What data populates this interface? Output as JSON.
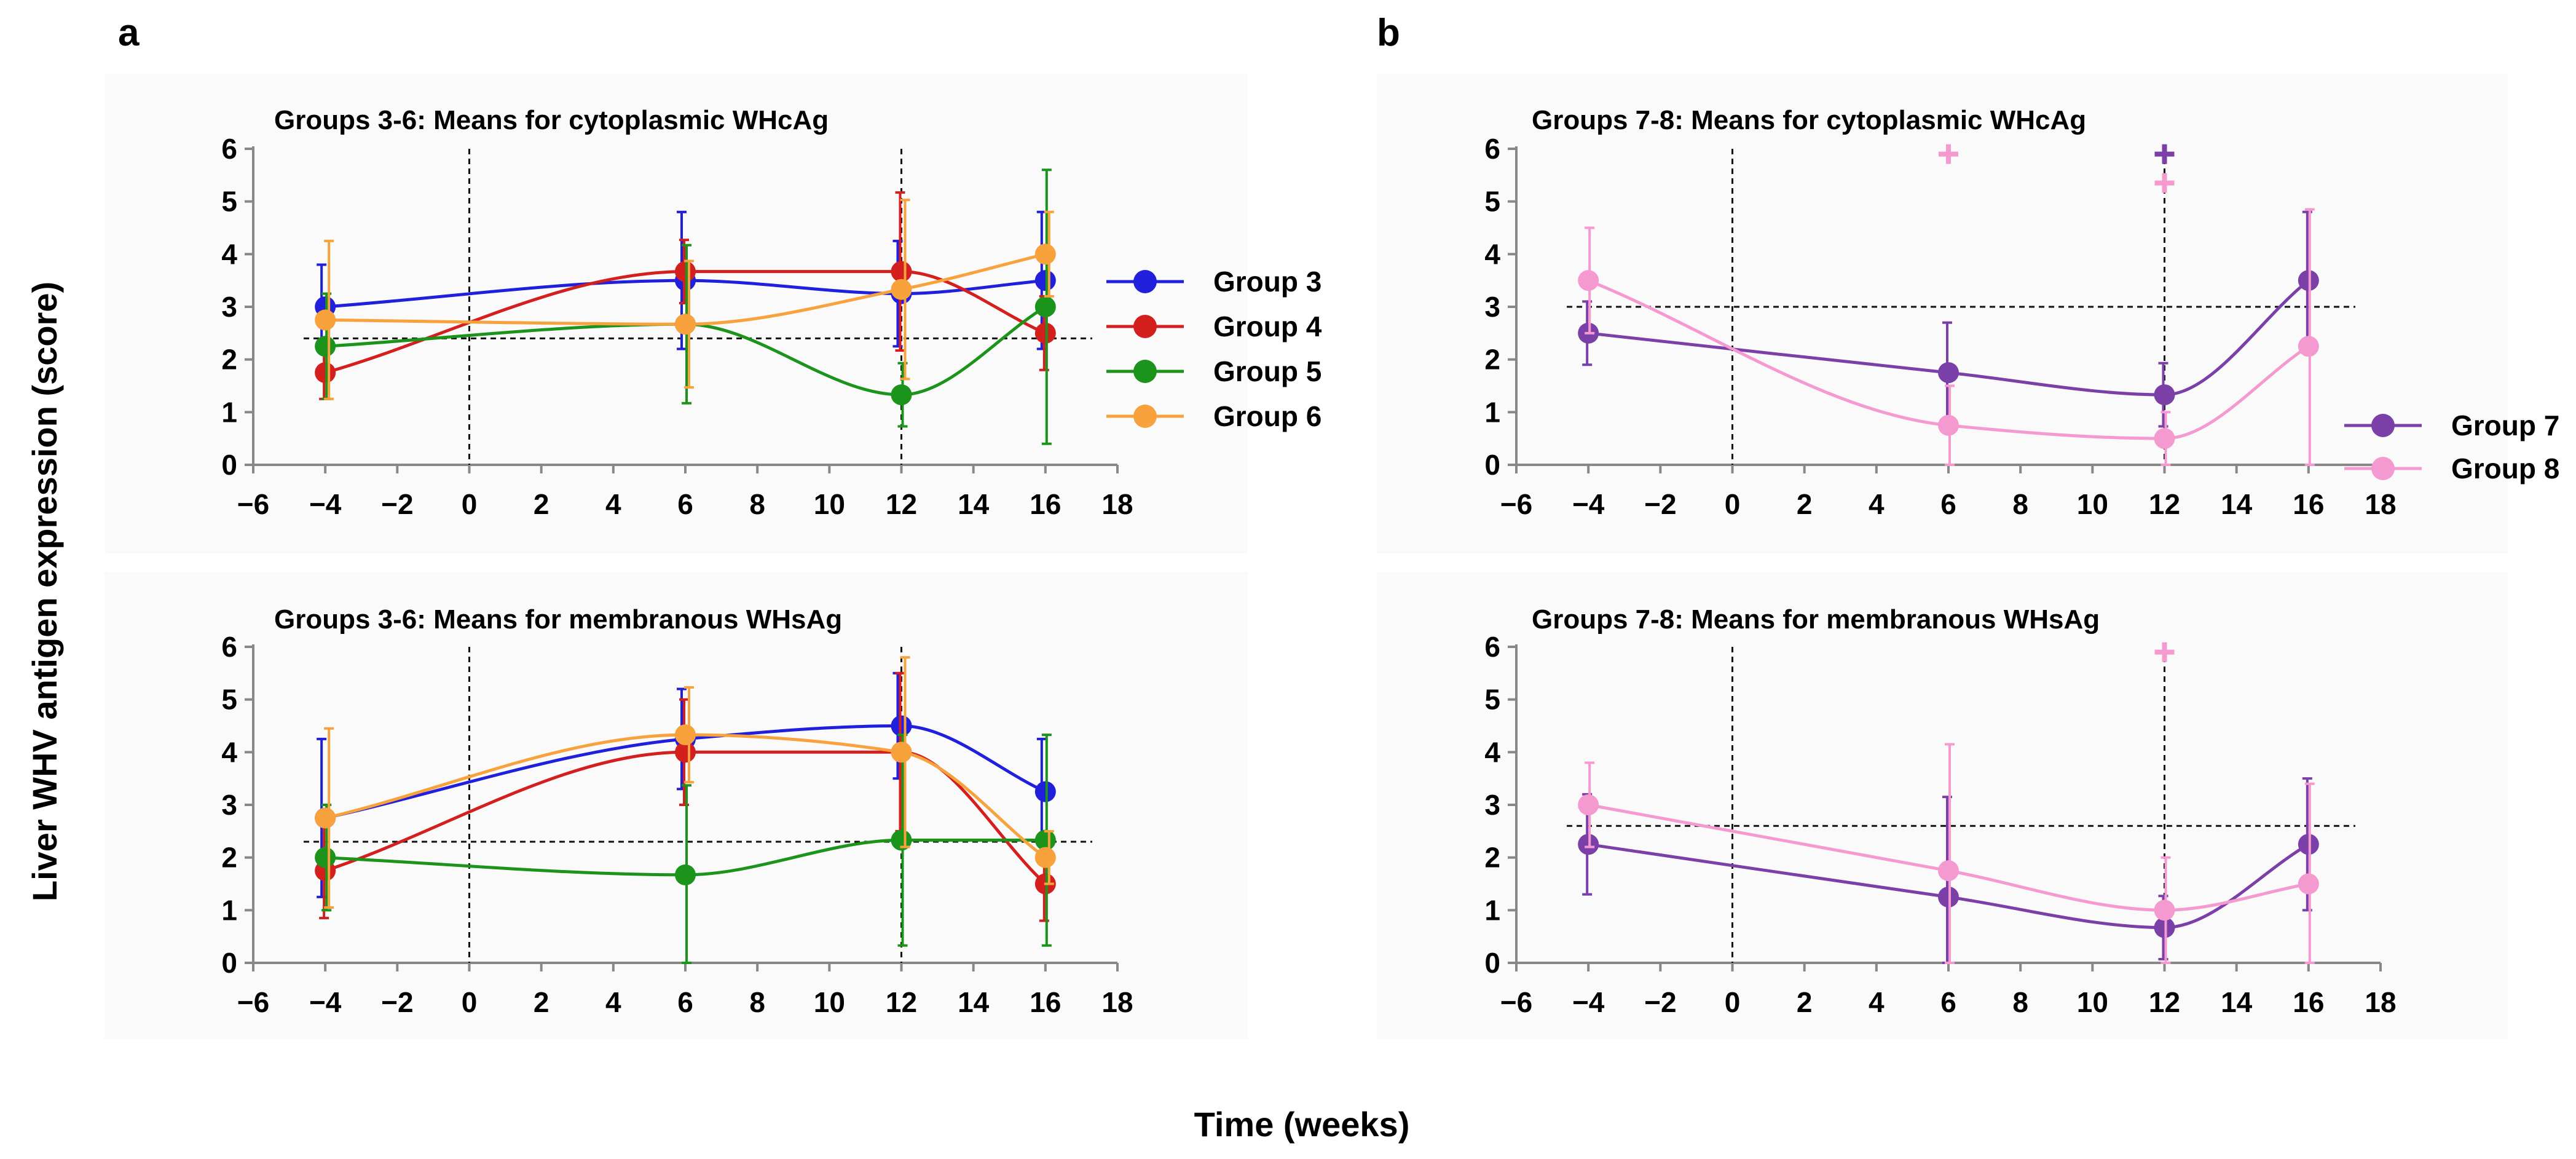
{
  "figure": {
    "ylabel": "Liver WHV antigen expression (score)",
    "xlabel": "Time (weeks)",
    "panels": [
      "a",
      "b"
    ]
  },
  "chart_data": [
    {
      "type": "line",
      "panel": "a",
      "title": "Groups 3-6: Means for cytoplasmic WHcAg",
      "xlim": [
        -6,
        18
      ],
      "ylim": [
        0,
        6
      ],
      "xticks": [
        "−6",
        "−4",
        "−2",
        "0",
        "2",
        "4",
        "6",
        "8",
        "10",
        "12",
        "14",
        "16",
        "18"
      ],
      "yticks": [
        "0",
        "1",
        "2",
        "3",
        "4",
        "5",
        "6"
      ],
      "vlines": [
        0,
        12
      ],
      "hline": 2.4,
      "x": [
        -4,
        6,
        12,
        16
      ],
      "series": [
        {
          "name": "Group 3",
          "color": "#1f1fdc",
          "values": [
            3.0,
            3.5,
            3.25,
            3.5
          ],
          "err": [
            0.8,
            1.3,
            1.0,
            1.3
          ]
        },
        {
          "name": "Group 4",
          "color": "#d41f1f",
          "values": [
            1.75,
            3.67,
            3.67,
            2.5
          ],
          "err": [
            0.5,
            0.6,
            1.5,
            0.7
          ]
        },
        {
          "name": "Group 5",
          "color": "#1c941c",
          "values": [
            2.25,
            2.67,
            1.33,
            3.0
          ],
          "err": [
            1.0,
            1.5,
            0.6,
            2.6
          ]
        },
        {
          "name": "Group 6",
          "color": "#f7a23c",
          "values": [
            2.75,
            2.67,
            3.33,
            4.0
          ],
          "err": [
            1.5,
            1.2,
            1.7,
            0.8
          ]
        }
      ],
      "markers": []
    },
    {
      "type": "line",
      "panel": "a",
      "title": "Groups 3-6: Means for membranous WHsAg",
      "xlim": [
        -6,
        18
      ],
      "ylim": [
        0,
        6
      ],
      "xticks": [
        "−6",
        "−4",
        "−2",
        "0",
        "2",
        "4",
        "6",
        "8",
        "10",
        "12",
        "14",
        "16",
        "18"
      ],
      "yticks": [
        "0",
        "1",
        "2",
        "3",
        "4",
        "5",
        "6"
      ],
      "vlines": [
        0,
        12
      ],
      "hline": 2.3,
      "x": [
        -4,
        6,
        12,
        16
      ],
      "series": [
        {
          "name": "Group 3",
          "color": "#1f1fdc",
          "values": [
            2.75,
            4.25,
            4.5,
            3.25
          ],
          "err": [
            1.5,
            0.95,
            1.0,
            1.0
          ]
        },
        {
          "name": "Group 4",
          "color": "#d41f1f",
          "values": [
            1.75,
            4.0,
            4.0,
            1.5
          ],
          "err": [
            0.9,
            1.0,
            1.5,
            0.7
          ]
        },
        {
          "name": "Group 5",
          "color": "#1c941c",
          "values": [
            2.0,
            1.67,
            2.33,
            2.33
          ],
          "err": [
            1.0,
            1.7,
            2.0,
            2.0
          ]
        },
        {
          "name": "Group 6",
          "color": "#f7a23c",
          "values": [
            2.75,
            4.33,
            4.0,
            2.0
          ],
          "err": [
            1.7,
            0.9,
            1.8,
            0.5
          ]
        }
      ],
      "markers": []
    },
    {
      "type": "line",
      "panel": "b",
      "title": "Groups 7-8: Means for cytoplasmic WHcAg",
      "xlim": [
        -6,
        18
      ],
      "ylim": [
        0,
        6
      ],
      "xticks": [
        "−6",
        "−4",
        "−2",
        "0",
        "2",
        "4",
        "6",
        "8",
        "10",
        "12",
        "14",
        "16",
        "18"
      ],
      "yticks": [
        "0",
        "1",
        "2",
        "3",
        "4",
        "5",
        "6"
      ],
      "vlines": [
        0,
        12
      ],
      "hline": 3.0,
      "x": [
        -4,
        6,
        12,
        16
      ],
      "series": [
        {
          "name": "Group 7",
          "color": "#7b3fa8",
          "values": [
            2.5,
            1.75,
            1.33,
            3.5
          ],
          "err": [
            0.6,
            0.95,
            0.6,
            1.3
          ]
        },
        {
          "name": "Group 8",
          "color": "#f49ad0",
          "values": [
            3.5,
            0.75,
            0.5,
            2.25
          ],
          "err": [
            1.0,
            0.75,
            0.5,
            2.6
          ]
        }
      ],
      "markers": [
        {
          "series": 1,
          "x": 6,
          "y": 5.9
        },
        {
          "series": 0,
          "x": 12,
          "y": 5.9
        },
        {
          "series": 1,
          "x": 12,
          "y": 5.35
        }
      ]
    },
    {
      "type": "line",
      "panel": "b",
      "title": "Groups 7-8: Means for membranous WHsAg",
      "xlim": [
        -6,
        18
      ],
      "ylim": [
        0,
        6
      ],
      "xticks": [
        "−6",
        "−4",
        "−2",
        "0",
        "2",
        "4",
        "6",
        "8",
        "10",
        "12",
        "14",
        "16",
        "18"
      ],
      "yticks": [
        "0",
        "1",
        "2",
        "3",
        "4",
        "5",
        "6"
      ],
      "vlines": [
        0,
        12
      ],
      "hline": 2.6,
      "x": [
        -4,
        6,
        12,
        16
      ],
      "series": [
        {
          "name": "Group 7",
          "color": "#7b3fa8",
          "values": [
            2.25,
            1.25,
            0.67,
            2.25
          ],
          "err": [
            0.95,
            1.9,
            0.6,
            1.25
          ]
        },
        {
          "name": "Group 8",
          "color": "#f49ad0",
          "values": [
            3.0,
            1.75,
            1.0,
            1.5
          ],
          "err": [
            0.8,
            2.4,
            1.0,
            1.9
          ]
        }
      ],
      "markers": [
        {
          "series": 1,
          "x": 12,
          "y": 5.9
        }
      ]
    }
  ]
}
